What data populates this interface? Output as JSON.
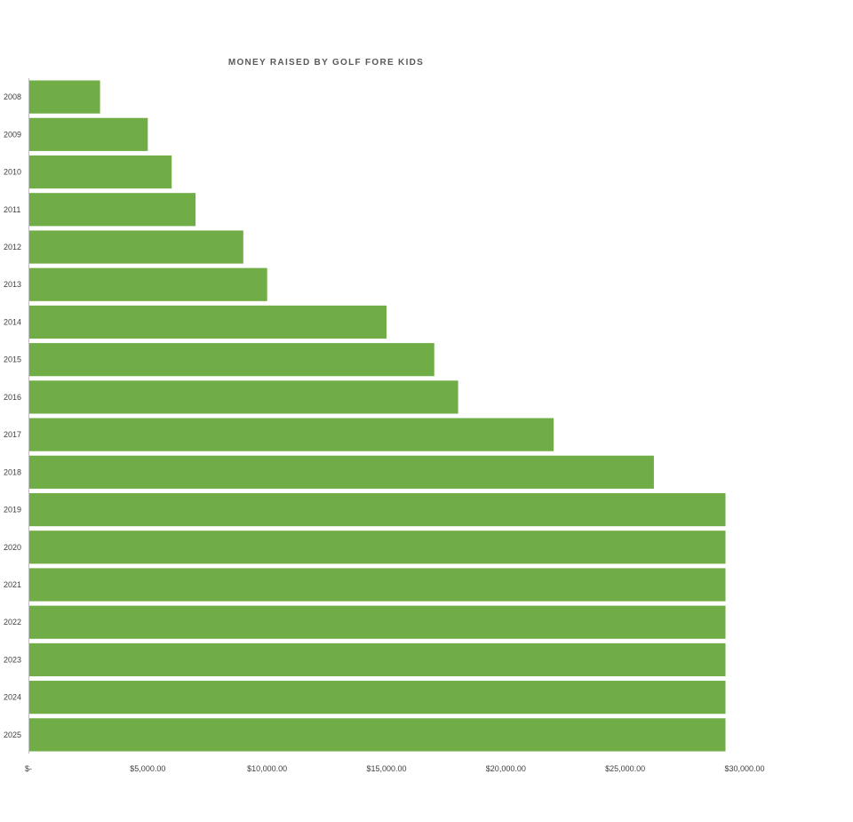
{
  "chart_data": {
    "type": "bar",
    "orientation": "horizontal",
    "title": "MONEY RAISED BY GOLF FORE KIDS",
    "categories": [
      "2008",
      "2009",
      "2010",
      "2011",
      "2012",
      "2013",
      "2014",
      "2015",
      "2016",
      "2017",
      "2018",
      "2019",
      "2020",
      "2021",
      "2022",
      "2023",
      "2024",
      "2025"
    ],
    "values": [
      3000,
      5000,
      6000,
      7000,
      9000,
      10000,
      15000,
      17000,
      18000,
      22000,
      26200,
      29200,
      29200,
      29200,
      29200,
      29200,
      29200,
      29200
    ],
    "x_ticks": [
      0,
      5000,
      10000,
      15000,
      20000,
      25000,
      30000
    ],
    "x_tick_labels": [
      "$-",
      "$5,000.00",
      "$10,000.00",
      "$15,000.00",
      "$20,000.00",
      "$25,000.00",
      "$30,000.00"
    ],
    "xlim": [
      0,
      30000
    ],
    "xlabel": "",
    "ylabel": "",
    "grid": false,
    "legend": "none",
    "bar_color": "#70ad47"
  }
}
